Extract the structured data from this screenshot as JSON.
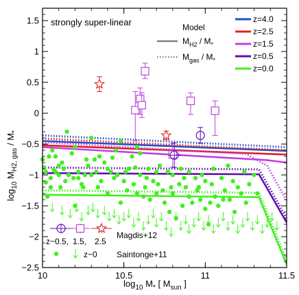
{
  "chart_data": {
    "type": "scatter",
    "title": "",
    "annotation": "strongly super-linear",
    "xlabel": "log₁₀ M∗ [ M_sun ]",
    "xlabel_parts": {
      "a": "log",
      "b": "10",
      "c": " M",
      "d": "*",
      "e": " [ M",
      "f": "sun",
      "g": " ]"
    },
    "ylabel_parts": {
      "a": "log",
      "b": "10",
      "c": " M",
      "d": "H2, gas",
      "e": " / M",
      "f": "*"
    },
    "xlim": [
      10.0,
      11.5
    ],
    "ylim": [
      -2.5,
      1.7
    ],
    "x_ticks": [
      10,
      10.5,
      11,
      11.5
    ],
    "x_tick_labels": [
      "10",
      "10.5",
      "11",
      "11.5"
    ],
    "y_ticks": [
      -2.5,
      -2,
      -1.5,
      -1,
      -0.5,
      0,
      0.5,
      1,
      1.5
    ],
    "y_tick_labels": [
      "−2.5",
      "−2",
      "−1.5",
      "−1",
      "−0.5",
      "0",
      "0.5",
      "1",
      "1.5"
    ],
    "model_legend": {
      "title": "Model",
      "items": [
        {
          "label_main": "M",
          "label_sub": "H2",
          "label_rest": " / M",
          "label_star": "*",
          "style": "solid",
          "color": "#808080"
        },
        {
          "label_main": "M",
          "label_sub": "gas",
          "label_rest": " / M",
          "label_star": "*",
          "style": "dotted",
          "color": "#808080"
        }
      ]
    },
    "series": [
      {
        "name": "z=4.0",
        "color": "#2050c8",
        "mh2": {
          "x": [
            10.0,
            11.5
          ],
          "y": [
            -0.45,
            -0.61
          ]
        },
        "mgas": {
          "x": [
            10.0,
            11.5
          ],
          "y": [
            -0.36,
            -0.55
          ]
        }
      },
      {
        "name": "z=2.5",
        "color": "#e02020",
        "mh2": {
          "x": [
            10.0,
            11.5
          ],
          "y": [
            -0.52,
            -0.67
          ]
        },
        "mgas": {
          "x": [
            10.0,
            11.5
          ],
          "y": [
            -0.41,
            -0.6
          ]
        }
      },
      {
        "name": "z=1.5",
        "color": "#c040e0",
        "mh2": {
          "x": [
            10.0,
            11.38,
            11.5
          ],
          "y": [
            -0.55,
            -0.76,
            -0.8
          ]
        },
        "mgas": {
          "x": [
            10.0,
            11.25,
            11.38,
            11.5
          ],
          "y": [
            -0.47,
            -0.66,
            -0.85,
            -1.42
          ]
        }
      },
      {
        "name": "z=0.5",
        "color": "#6010b0",
        "mh2": {
          "x": [
            10.0,
            11.33,
            11.5
          ],
          "y": [
            -0.97,
            -0.99,
            -1.77
          ]
        },
        "mgas": {
          "x": [
            10.0,
            11.33,
            11.5
          ],
          "y": [
            -0.88,
            -0.91,
            -1.7
          ]
        }
      },
      {
        "name": "z=0.0",
        "color": "#44ee22",
        "mh2": {
          "x": [
            10.0,
            11.33,
            11.5
          ],
          "y": [
            -1.32,
            -1.36,
            -2.45
          ]
        },
        "mgas": {
          "x": [
            10.0,
            11.33,
            11.5
          ],
          "y": [
            -1.25,
            -1.29,
            -2.38
          ]
        }
      }
    ],
    "magdis12": {
      "label": "Magdis+12",
      "legend_labels": [
        "z~0.5,",
        "1.5,",
        "2.5"
      ],
      "circles": [
        {
          "x": 10.81,
          "y": -0.68,
          "yerr": 0.2,
          "xerr": 0.04
        },
        {
          "x": 10.97,
          "y": -0.36,
          "yerr": 0.13,
          "xerr": 0.0
        }
      ],
      "squares": [
        {
          "x": 10.57,
          "y": 0.05,
          "ylo": 0.5,
          "yhi": 0.3
        },
        {
          "x": 10.6,
          "y": 0.23,
          "ylo": 0.25,
          "yhi": 0.18
        },
        {
          "x": 10.61,
          "y": 0.13,
          "ylo": 0.2,
          "yhi": 0.2
        },
        {
          "x": 10.63,
          "y": 0.68,
          "ylo": 0.12,
          "yhi": 0.13
        },
        {
          "x": 10.91,
          "y": 0.2,
          "ylo": 0.22,
          "yhi": 0.13
        },
        {
          "x": 11.06,
          "y": 0.04,
          "ylo": 0.4,
          "yhi": 0.16
        },
        {
          "x": 10.8,
          "y": -0.67,
          "ylo": 0.2,
          "yhi": 0.18
        }
      ],
      "stars": [
        {
          "x": 10.35,
          "y": 0.47,
          "yerr": 0.12
        },
        {
          "x": 10.76,
          "y": -0.36,
          "yerr": 0.07
        }
      ]
    },
    "saintonge11": {
      "label": "Saintonge+11",
      "legend_label": "z~0",
      "color": "#44ee22",
      "points": [
        [
          10.0,
          -0.75
        ],
        [
          10.01,
          -0.88
        ],
        [
          10.02,
          -0.95
        ],
        [
          10.02,
          -1.12
        ],
        [
          10.04,
          -0.7
        ],
        [
          10.05,
          -1.05
        ],
        [
          10.05,
          -1.2
        ],
        [
          10.06,
          -0.6
        ],
        [
          10.08,
          -0.7
        ],
        [
          10.08,
          -0.95
        ],
        [
          10.1,
          -1.0
        ],
        [
          10.1,
          -0.85
        ],
        [
          10.12,
          -0.8
        ],
        [
          10.13,
          -0.9
        ],
        [
          10.14,
          -1.1
        ],
        [
          10.15,
          -0.3
        ],
        [
          10.16,
          -1.0
        ],
        [
          10.18,
          -0.65
        ],
        [
          10.2,
          -1.5
        ],
        [
          10.2,
          -0.55
        ],
        [
          10.22,
          -0.95
        ],
        [
          10.22,
          -1.05
        ],
        [
          10.24,
          -1.15
        ],
        [
          10.25,
          -1.2
        ],
        [
          10.26,
          -1.0
        ],
        [
          10.28,
          -0.85
        ],
        [
          10.3,
          -1.0
        ],
        [
          10.3,
          -0.4
        ],
        [
          10.32,
          -0.75
        ],
        [
          10.33,
          -0.95
        ],
        [
          10.35,
          -0.7
        ],
        [
          10.36,
          -1.1
        ],
        [
          10.38,
          -0.8
        ],
        [
          10.4,
          -1.3
        ],
        [
          10.4,
          -0.9
        ],
        [
          10.42,
          -0.95
        ],
        [
          10.44,
          -1.05
        ],
        [
          10.45,
          -0.6
        ],
        [
          10.46,
          -1.0
        ],
        [
          10.48,
          -1.45
        ],
        [
          10.48,
          -0.45
        ],
        [
          10.5,
          -1.1
        ],
        [
          10.52,
          -1.25
        ],
        [
          10.53,
          -0.9
        ],
        [
          10.55,
          -0.7
        ],
        [
          10.56,
          -1.15
        ],
        [
          10.58,
          -0.55
        ],
        [
          10.58,
          -1.3
        ],
        [
          10.6,
          -1.0
        ],
        [
          10.6,
          -0.65
        ],
        [
          10.62,
          -1.35
        ],
        [
          10.63,
          -1.2
        ],
        [
          10.65,
          -0.9
        ],
        [
          10.66,
          -1.4
        ],
        [
          10.68,
          -1.1
        ],
        [
          10.7,
          -1.3
        ],
        [
          10.7,
          -0.95
        ],
        [
          10.72,
          -0.85
        ],
        [
          10.74,
          -1.25
        ],
        [
          10.75,
          -1.45
        ],
        [
          10.77,
          -0.95
        ],
        [
          10.78,
          -1.6
        ],
        [
          10.8,
          -1.3
        ],
        [
          10.8,
          -1.0
        ],
        [
          10.82,
          -1.7
        ],
        [
          10.84,
          -1.15
        ],
        [
          10.85,
          -0.9
        ],
        [
          10.86,
          -1.5
        ],
        [
          10.88,
          -1.2
        ],
        [
          10.9,
          -1.35
        ],
        [
          10.9,
          -0.95
        ],
        [
          10.92,
          -1.45
        ],
        [
          10.94,
          -1.05
        ],
        [
          10.95,
          -1.25
        ],
        [
          10.97,
          -1.4
        ],
        [
          10.98,
          -1.0
        ],
        [
          11.0,
          -1.55
        ],
        [
          11.0,
          -1.1
        ],
        [
          11.02,
          -1.8
        ],
        [
          11.04,
          -1.15
        ],
        [
          11.05,
          -0.9
        ],
        [
          11.06,
          -1.35
        ],
        [
          11.08,
          -1.5
        ],
        [
          11.1,
          -1.05
        ],
        [
          11.12,
          -1.25
        ],
        [
          11.14,
          -0.85
        ],
        [
          11.15,
          -1.4
        ],
        [
          11.17,
          -1.1
        ],
        [
          11.18,
          -1.6
        ],
        [
          11.2,
          -1.2
        ],
        [
          11.22,
          -1.3
        ],
        [
          11.24,
          -0.95
        ],
        [
          11.25,
          -1.45
        ],
        [
          11.27,
          -1.15
        ],
        [
          11.3,
          -1.0
        ],
        [
          11.32,
          -1.3
        ],
        [
          10.03,
          -1.35
        ],
        [
          10.07,
          -0.92
        ],
        [
          10.11,
          -1.2
        ],
        [
          10.19,
          -1.05
        ],
        [
          10.27,
          -0.75
        ],
        [
          10.34,
          -1.2
        ],
        [
          10.43,
          -0.72
        ],
        [
          10.51,
          -0.95
        ],
        [
          10.57,
          -0.88
        ],
        [
          10.64,
          -1.05
        ],
        [
          10.71,
          -1.15
        ],
        [
          10.79,
          -1.2
        ],
        [
          10.87,
          -1.05
        ],
        [
          10.96,
          -1.2
        ],
        [
          11.03,
          -1.45
        ],
        [
          11.11,
          -1.4
        ]
      ],
      "upper_limits": [
        [
          10.06,
          -1.45
        ],
        [
          10.12,
          -1.5
        ],
        [
          10.17,
          -1.55
        ],
        [
          10.21,
          -1.45
        ],
        [
          10.24,
          -1.6
        ],
        [
          10.28,
          -1.5
        ],
        [
          10.31,
          -1.45
        ],
        [
          10.34,
          -1.55
        ],
        [
          10.38,
          -1.5
        ],
        [
          10.41,
          -1.6
        ],
        [
          10.44,
          -1.55
        ],
        [
          10.47,
          -1.65
        ],
        [
          10.5,
          -1.6
        ],
        [
          10.53,
          -1.55
        ],
        [
          10.56,
          -1.7
        ],
        [
          10.59,
          -1.6
        ],
        [
          10.62,
          -1.75
        ],
        [
          10.65,
          -1.65
        ],
        [
          10.68,
          -1.55
        ],
        [
          10.7,
          -1.7
        ],
        [
          10.73,
          -1.6
        ],
        [
          10.76,
          -1.75
        ],
        [
          10.79,
          -1.85
        ],
        [
          10.82,
          -1.6
        ],
        [
          10.85,
          -1.75
        ],
        [
          10.88,
          -1.65
        ],
        [
          10.9,
          -1.8
        ],
        [
          10.93,
          -1.7
        ],
        [
          10.96,
          -1.6
        ],
        [
          10.99,
          -1.75
        ],
        [
          11.02,
          -1.65
        ],
        [
          11.05,
          -1.8
        ],
        [
          11.08,
          -1.7
        ],
        [
          11.11,
          -1.6
        ],
        [
          11.14,
          -1.75
        ],
        [
          11.17,
          -1.65
        ],
        [
          11.2,
          -1.8
        ],
        [
          11.23,
          -1.7
        ],
        [
          11.26,
          -1.6
        ],
        [
          11.29,
          -1.75
        ],
        [
          11.32,
          -1.65
        ],
        [
          11.35,
          -1.8
        ],
        [
          11.38,
          -1.7
        ],
        [
          11.41,
          -1.6
        ],
        [
          11.44,
          -1.75
        ]
      ]
    }
  }
}
